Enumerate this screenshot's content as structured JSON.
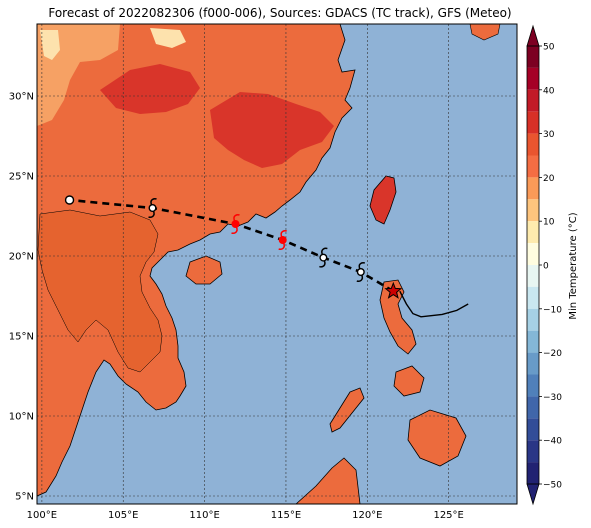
{
  "title": "Forecast of 2022082306 (f000-006), Sources: GDACS (TC track), GFS (Meteo)",
  "colors": {
    "ocean": "#8fb2d6",
    "land_warm": "#ec6b3d",
    "land_hot": "#d9352a",
    "land_mild": "#f6a164",
    "land_pale": "#fde2ad",
    "coast": "#000000",
    "track_forecast": "#000000",
    "track_marker_current": "#ff0000",
    "current_position": "#cc0000"
  },
  "map": {
    "lon_ticks": [
      "100°E",
      "105°E",
      "110°E",
      "115°E",
      "120°E",
      "125°E"
    ],
    "lat_ticks": [
      "30°N",
      "25°N",
      "20°N",
      "15°N",
      "10°N",
      "5°N"
    ],
    "gridlines": true,
    "lon_range": [
      99.7,
      129.2
    ],
    "lat_range": [
      4.5,
      34.5
    ]
  },
  "colorbar": {
    "label": "Min Temperature (°C)",
    "ticks": [
      "50",
      "40",
      "30",
      "20",
      "10",
      "0",
      "−10",
      "−20",
      "−30",
      "−40",
      "−50"
    ],
    "tick_values": [
      50,
      40,
      30,
      20,
      10,
      0,
      -10,
      -20,
      -30,
      -40,
      -50
    ],
    "range": [
      -50,
      50
    ],
    "levels": [
      {
        "from": 45,
        "to": 50,
        "color": "#7c0022"
      },
      {
        "from": 40,
        "to": 45,
        "color": "#a50026"
      },
      {
        "from": 35,
        "to": 40,
        "color": "#c21a27"
      },
      {
        "from": 30,
        "to": 35,
        "color": "#d73027"
      },
      {
        "from": 25,
        "to": 30,
        "color": "#e9552f"
      },
      {
        "from": 20,
        "to": 25,
        "color": "#f46d43"
      },
      {
        "from": 15,
        "to": 20,
        "color": "#fa9a58"
      },
      {
        "from": 10,
        "to": 15,
        "color": "#fdc47d"
      },
      {
        "from": 5,
        "to": 10,
        "color": "#feebae"
      },
      {
        "from": 0,
        "to": 5,
        "color": "#fffde0"
      },
      {
        "from": -5,
        "to": 0,
        "color": "#e8f6f2"
      },
      {
        "from": -10,
        "to": -5,
        "color": "#c9e7f0"
      },
      {
        "from": -15,
        "to": -10,
        "color": "#a6d1e5"
      },
      {
        "from": -20,
        "to": -15,
        "color": "#84b7d7"
      },
      {
        "from": -25,
        "to": -20,
        "color": "#689bc8"
      },
      {
        "from": -30,
        "to": -25,
        "color": "#5080ba"
      },
      {
        "from": -35,
        "to": -30,
        "color": "#4066aa"
      },
      {
        "from": -40,
        "to": -35,
        "color": "#324d98"
      },
      {
        "from": -45,
        "to": -40,
        "color": "#2a3686"
      },
      {
        "from": -50,
        "to": -45,
        "color": "#212272"
      }
    ]
  },
  "track": {
    "past": [
      [
        126.2,
        17.0
      ],
      [
        125.5,
        16.6
      ],
      [
        124.6,
        16.35
      ],
      [
        123.3,
        16.2
      ],
      [
        122.8,
        16.4
      ],
      [
        122.4,
        17.0
      ],
      [
        122.0,
        17.8
      ]
    ],
    "forecast": [
      [
        121.6,
        17.8
      ],
      [
        119.6,
        19.0
      ],
      [
        117.3,
        19.9
      ],
      [
        114.8,
        21.0
      ],
      [
        111.9,
        22.0
      ],
      [
        106.8,
        23.0
      ],
      [
        101.7,
        23.5
      ]
    ],
    "markers": [
      {
        "lon": 121.6,
        "lat": 17.8,
        "kind": "current",
        "icon": "star-icon"
      },
      {
        "lon": 119.6,
        "lat": 19.0,
        "kind": "forecast",
        "icon": "typhoon-icon"
      },
      {
        "lon": 117.3,
        "lat": 19.9,
        "kind": "forecast",
        "icon": "typhoon-icon"
      },
      {
        "lon": 114.8,
        "lat": 21.0,
        "kind": "highlight",
        "icon": "typhoon-icon"
      },
      {
        "lon": 111.9,
        "lat": 22.0,
        "kind": "highlight",
        "icon": "typhoon-icon"
      },
      {
        "lon": 106.8,
        "lat": 23.0,
        "kind": "forecast",
        "icon": "typhoon-icon"
      },
      {
        "lon": 101.7,
        "lat": 23.5,
        "kind": "end",
        "icon": "circle-icon"
      }
    ]
  }
}
